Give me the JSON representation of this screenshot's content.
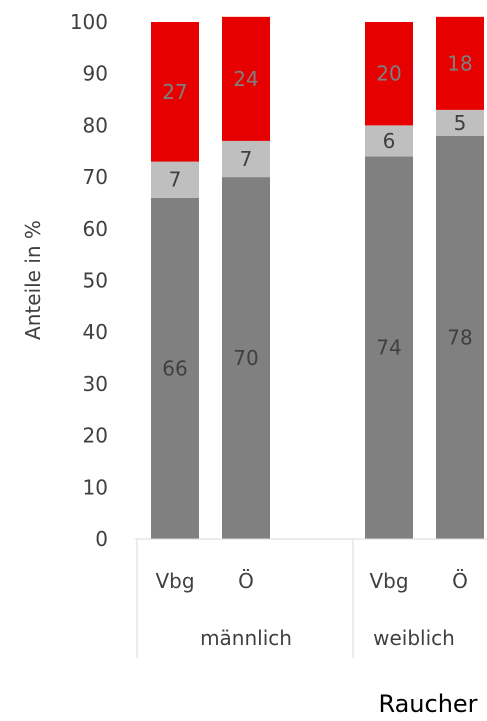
{
  "chart_data": {
    "type": "bar",
    "stacked": true,
    "ylabel": "Anteile in %",
    "ylim": [
      0,
      100
    ],
    "yticks": [
      0,
      10,
      20,
      30,
      40,
      50,
      60,
      70,
      80,
      90,
      100
    ],
    "categories": [
      "Vbg",
      "Ö",
      "Vbg",
      "Ö"
    ],
    "groups": [
      {
        "label": "männlich",
        "categories": [
          "Vbg",
          "Ö"
        ]
      },
      {
        "label": "weiblich",
        "categories": [
          "Vbg",
          "Ö"
        ]
      }
    ],
    "series": [
      {
        "values": [
          66,
          70,
          74,
          78
        ],
        "color": "#808080",
        "label_color": "#404040"
      },
      {
        "values": [
          7,
          7,
          6,
          5
        ],
        "color": "#BFBFBF",
        "label_color": "#404040"
      },
      {
        "values": [
          27,
          24,
          20,
          18
        ],
        "color": "#E60000",
        "label_color": "#7F7F7F"
      }
    ],
    "footer": "Raucher"
  }
}
